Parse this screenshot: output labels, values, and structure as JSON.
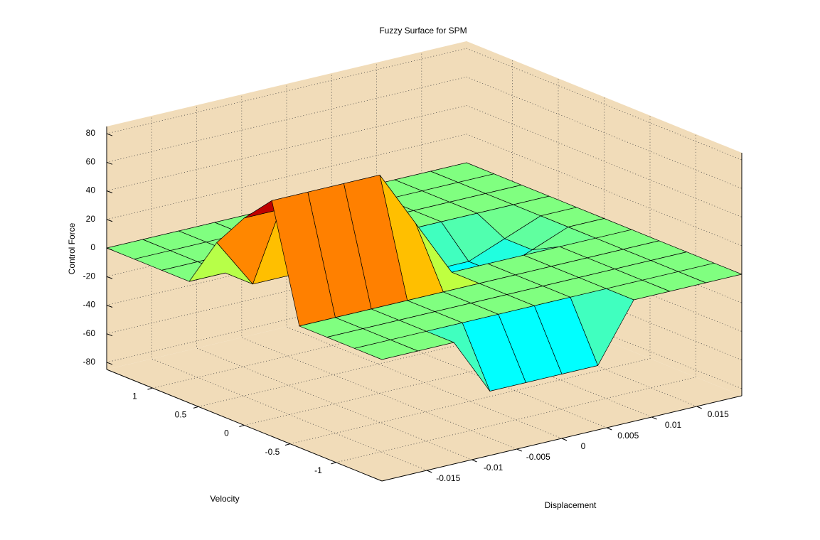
{
  "chart_data": {
    "type": "surface",
    "title": "Fuzzy Surface for SPM",
    "xlabel": "Displacement",
    "ylabel": "Velocity",
    "zlabel": "Control Force",
    "x": [
      -0.02,
      -0.016,
      -0.012,
      -0.008,
      -0.004,
      0,
      0.004,
      0.008,
      0.012,
      0.016,
      0.02
    ],
    "y": [
      -1.5,
      -1.2,
      -0.9,
      -0.6,
      -0.3,
      0,
      0.3,
      0.6,
      0.9,
      1.2,
      1.5
    ],
    "z": [
      [
        0,
        0,
        0,
        -40,
        -40,
        -40,
        -40,
        0,
        0,
        0,
        0
      ],
      [
        0,
        0,
        0,
        0,
        0,
        0,
        0,
        0,
        0,
        0,
        0
      ],
      [
        0,
        0,
        0,
        0,
        0,
        0,
        0,
        0,
        0,
        0,
        0
      ],
      [
        0,
        0,
        0,
        0,
        0,
        0,
        0,
        0,
        0,
        0,
        0
      ],
      [
        80,
        80,
        80,
        80,
        40,
        0,
        0,
        0,
        0,
        0,
        0
      ],
      [
        60,
        60,
        60,
        60,
        30,
        -10,
        -20,
        -20,
        -10,
        0,
        0
      ],
      [
        35,
        0,
        0,
        0,
        0,
        -15,
        -20,
        -20,
        -10,
        0,
        0
      ],
      [
        0,
        0,
        0,
        0,
        0,
        0,
        0,
        0,
        0,
        0,
        0
      ],
      [
        0,
        0,
        0,
        0,
        0,
        0,
        0,
        0,
        0,
        0,
        0
      ],
      [
        0,
        0,
        0,
        0,
        0,
        0,
        0,
        0,
        0,
        0,
        0
      ],
      [
        0,
        0,
        0,
        0,
        0,
        0,
        0,
        0,
        0,
        0,
        0
      ]
    ],
    "xlim": [
      -0.02,
      0.02
    ],
    "ylim": [
      -1.5,
      1.5
    ],
    "zlim": [
      -85,
      85
    ],
    "clim": [
      -80,
      80
    ],
    "colormap": "jet",
    "xticks": [
      -0.015,
      -0.01,
      -0.005,
      0,
      0.005,
      0.01,
      0.015
    ],
    "yticks": [
      -1,
      -0.5,
      0,
      0.5,
      1
    ],
    "zticks": [
      -80,
      -60,
      -40,
      -20,
      0,
      20,
      40,
      60,
      80
    ],
    "grid": true
  }
}
